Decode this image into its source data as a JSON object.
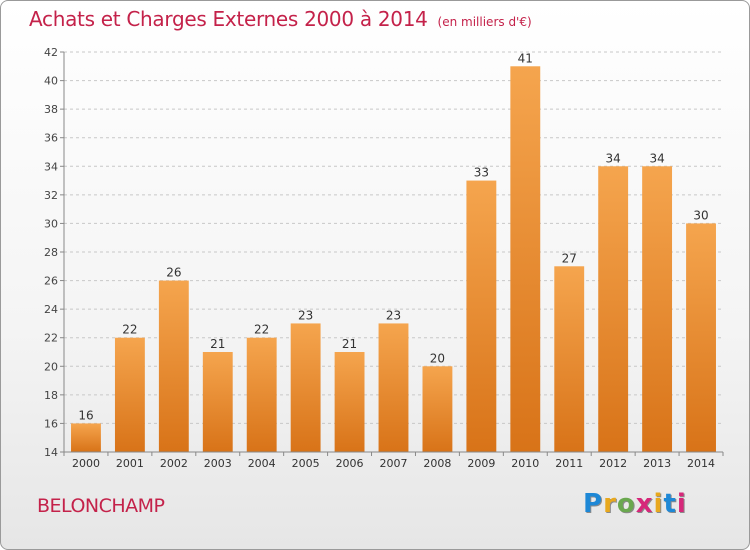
{
  "header": {
    "title": "Achats et Charges Externes 2000 à 2014",
    "unit": "(en milliers d'€)"
  },
  "footer": {
    "commune": "BELONCHAMP",
    "logo_text": "Proxiti",
    "logo_colors": [
      "#1e88d6",
      "#e8a81e",
      "#6aa84f",
      "#d6287a",
      "#e8a81e",
      "#1e88d6",
      "#d6287a"
    ]
  },
  "colors": {
    "title": "#c4224a",
    "bar_light": "#f5a54e",
    "bar_dark": "#d87318",
    "grid": "#c8c8c8"
  },
  "chart_data": {
    "type": "bar",
    "title": "Achats et Charges Externes 2000 à 2014",
    "xlabel": "",
    "ylabel": "",
    "categories": [
      "2000",
      "2001",
      "2002",
      "2003",
      "2004",
      "2005",
      "2006",
      "2007",
      "2008",
      "2009",
      "2010",
      "2011",
      "2012",
      "2013",
      "2014"
    ],
    "values": [
      16,
      22,
      26,
      21,
      22,
      23,
      21,
      23,
      20,
      33,
      41,
      27,
      34,
      34,
      30
    ],
    "ylim": [
      14,
      42
    ],
    "yticks": [
      14,
      16,
      18,
      20,
      22,
      24,
      26,
      28,
      30,
      32,
      34,
      36,
      38,
      40,
      42
    ],
    "grid": true,
    "data_labels": true
  }
}
